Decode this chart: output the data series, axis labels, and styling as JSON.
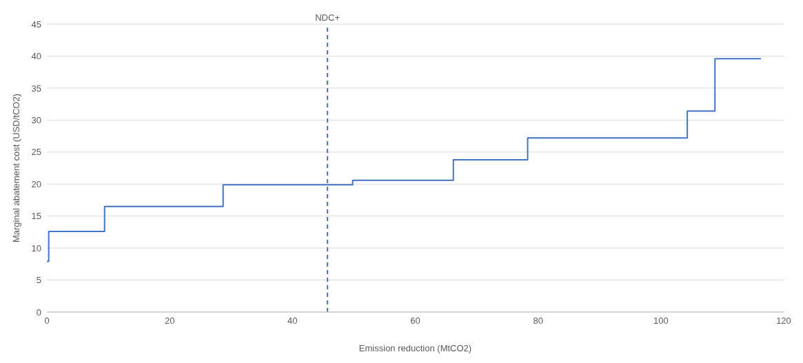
{
  "chart_data": {
    "type": "step",
    "xlabel": "Emission reduction (MtCO2)",
    "ylabel": "Marginal abatement cost (USD/tCO2)",
    "x": [
      0,
      0.3,
      9.4,
      28.7,
      49.8,
      66.2,
      78.3,
      104.3,
      108.8,
      116.3
    ],
    "values": [
      7.9,
      12.6,
      16.5,
      19.9,
      20.6,
      23.8,
      27.2,
      31.4,
      39.6,
      39.6
    ],
    "color": "#4472c4",
    "xlim": [
      0,
      120
    ],
    "xticks": [
      0,
      20,
      40,
      60,
      80,
      100,
      120
    ],
    "ylim": [
      0,
      45
    ],
    "yticks": [
      0,
      5,
      10,
      15,
      20,
      25,
      30,
      35,
      40,
      45
    ],
    "grid": "y",
    "ref_lines": [
      {
        "axis": "x",
        "value": 45.7,
        "label": "NDC+",
        "color": "#4472c4",
        "line_style": "dashed"
      }
    ]
  }
}
